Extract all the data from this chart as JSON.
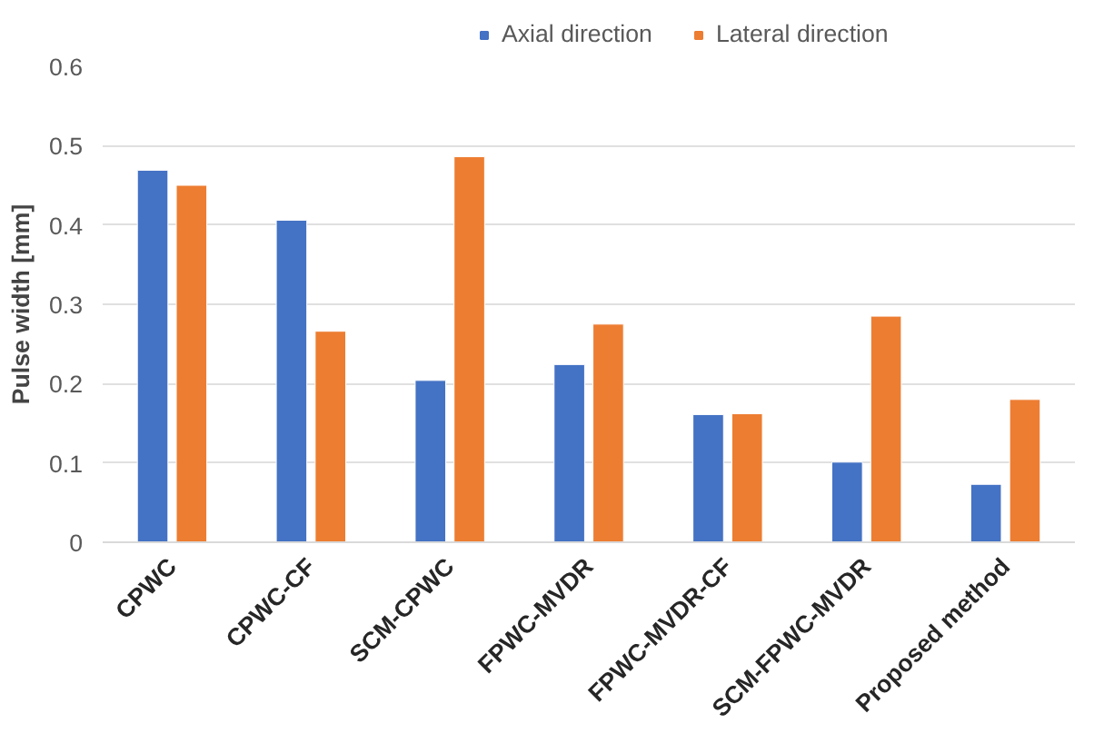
{
  "chart_data": {
    "type": "bar",
    "ylabel": "Pulse width [mm]",
    "categories": [
      "CPWC",
      "CPWC-CF",
      "SCM-CPWC",
      "FPWC-MVDR",
      "FPWC-MVDR-CF",
      "SCM-FPWC-MVDR",
      "Proposed method"
    ],
    "series": [
      {
        "name": "Axial direction",
        "color": "#4472c4",
        "values": [
          0.469,
          0.406,
          0.204,
          0.224,
          0.161,
          0.101,
          0.073
        ]
      },
      {
        "name": "Lateral direction",
        "color": "#ed7d31",
        "values": [
          0.45,
          0.266,
          0.486,
          0.275,
          0.162,
          0.285,
          0.18
        ]
      }
    ],
    "ylim": [
      0,
      0.6
    ],
    "yticks": [
      0,
      0.1,
      0.2,
      0.3,
      0.4,
      0.5,
      0.6
    ],
    "grid": "y",
    "legend": "top"
  }
}
